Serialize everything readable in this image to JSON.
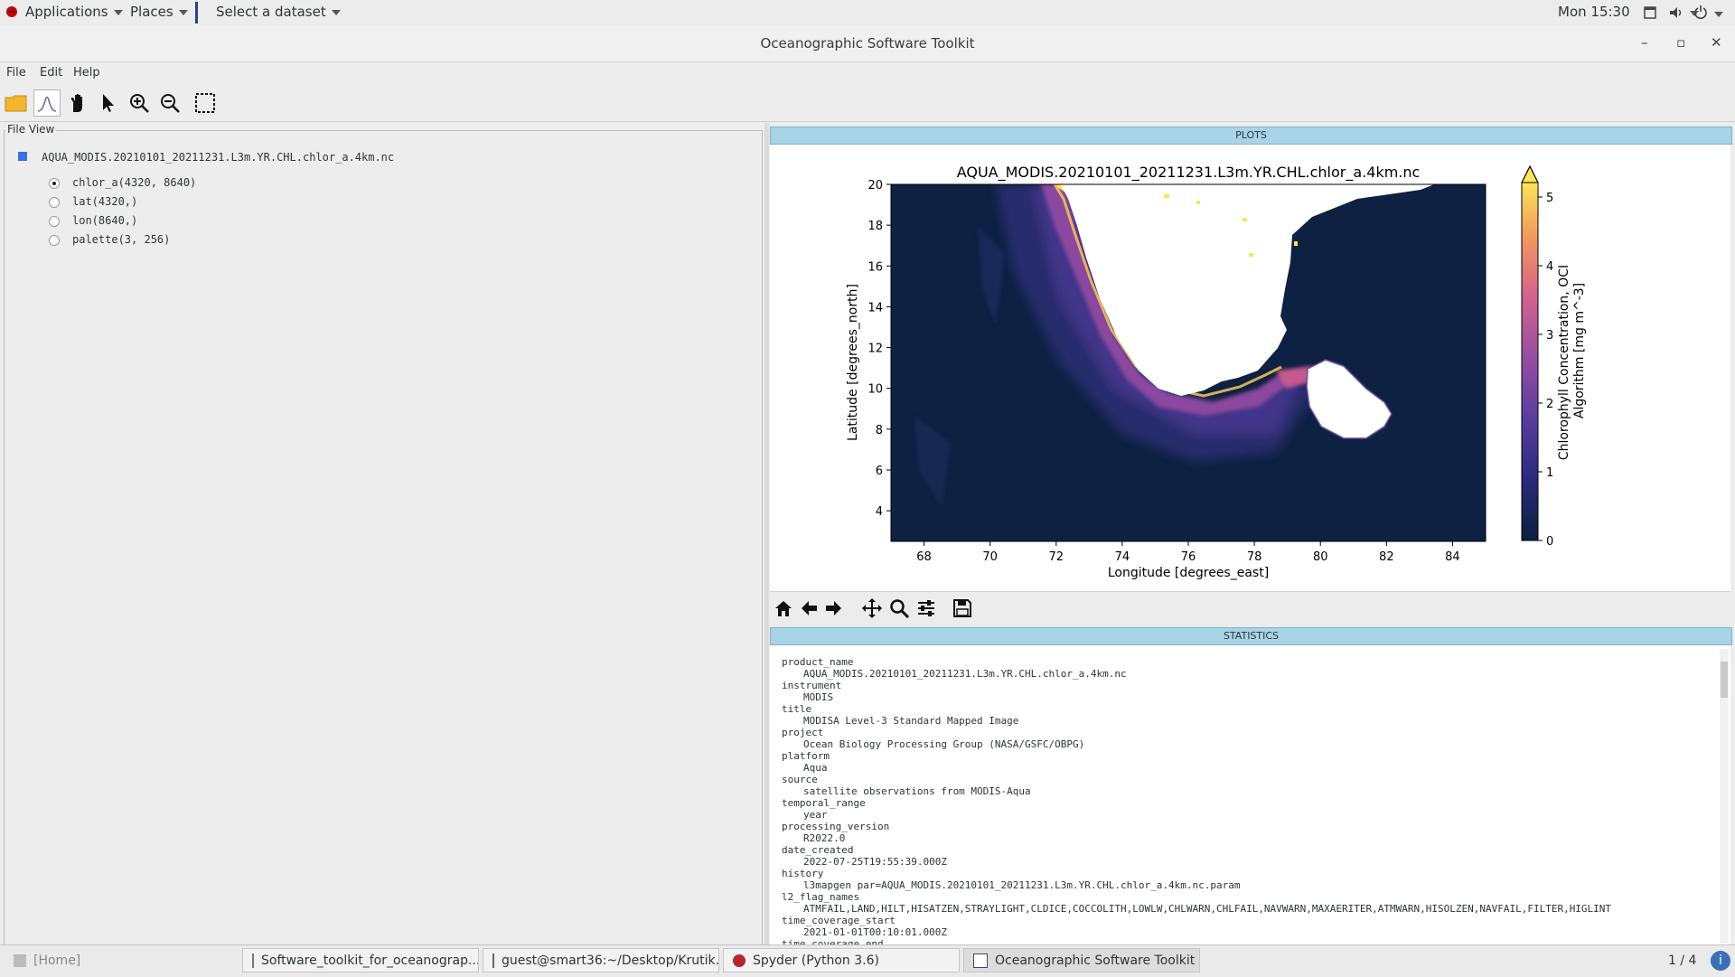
{
  "topbar": {
    "applications": "Applications",
    "places": "Places",
    "dataset": "Select a dataset",
    "clock": "Mon 15:30"
  },
  "window": {
    "title": "Oceanographic Software Toolkit"
  },
  "menu": {
    "file": "File",
    "edit": "Edit",
    "help": "Help"
  },
  "fileview": {
    "label": "File View",
    "filename": "AQUA_MODIS.20210101_20211231.L3m.YR.CHL.chlor_a.4km.nc",
    "variables": [
      {
        "label": "chlor_a(4320, 8640)",
        "selected": true
      },
      {
        "label": "lat(4320,)",
        "selected": false
      },
      {
        "label": "lon(8640,)",
        "selected": false
      },
      {
        "label": "palette(3, 256)",
        "selected": false
      }
    ]
  },
  "plots": {
    "header": "PLOTS"
  },
  "chart_data": {
    "type": "heatmap",
    "title": "AQUA_MODIS.20210101_20211231.L3m.YR.CHL.chlor_a.4km.nc",
    "xlabel": "Longitude [degrees_east]",
    "ylabel": "Latitude [degrees_north]",
    "xlim": [
      67,
      85
    ],
    "ylim": [
      2.5,
      20
    ],
    "xticks": [
      "68",
      "70",
      "72",
      "74",
      "76",
      "78",
      "80",
      "82",
      "84"
    ],
    "yticks": [
      "4",
      "6",
      "8",
      "10",
      "12",
      "14",
      "16",
      "18",
      "20"
    ],
    "colorbar": {
      "label": "Chlorophyll Concentration, OCI Algorithm [mg m^-3]",
      "label_line1": "Chlorophyll Concentration, OCI",
      "label_line2": "Algorithm [mg m^-3]",
      "range": [
        0,
        5
      ],
      "ticks": [
        "0",
        "1",
        "2",
        "3",
        "4",
        "5"
      ],
      "extend": "max",
      "colormap": [
        "#0b1f3d",
        "#2b2a7a",
        "#5b3fa0",
        "#9a4fa0",
        "#d8678a",
        "#f29a5a",
        "#fce45a"
      ]
    }
  },
  "stats": {
    "header": "STATISTICS",
    "entries": [
      {
        "key": "product_name",
        "value": "AQUA_MODIS.20210101_20211231.L3m.YR.CHL.chlor_a.4km.nc"
      },
      {
        "key": "instrument",
        "value": "MODIS"
      },
      {
        "key": "title",
        "value": "MODISA Level-3 Standard Mapped Image"
      },
      {
        "key": "project",
        "value": "Ocean Biology Processing Group (NASA/GSFC/OBPG)"
      },
      {
        "key": "platform",
        "value": "Aqua"
      },
      {
        "key": "source",
        "value": "satellite observations from MODIS-Aqua"
      },
      {
        "key": "temporal_range",
        "value": "year"
      },
      {
        "key": "processing_version",
        "value": "R2022.0"
      },
      {
        "key": "date_created",
        "value": "2022-07-25T19:55:39.000Z"
      },
      {
        "key": "history",
        "value": "l3mapgen par=AQUA_MODIS.20210101_20211231.L3m.YR.CHL.chlor_a.4km.nc.param"
      },
      {
        "key": "l2_flag_names",
        "value": "ATMFAIL,LAND,HILT,HISATZEN,STRAYLIGHT,CLDICE,COCCOLITH,LOWLW,CHLWARN,CHLFAIL,NAVWARN,MAXAERITER,ATMWARN,HISOLZEN,NAVFAIL,FILTER,HIGLINT"
      },
      {
        "key": "time_coverage_start",
        "value": "2021-01-01T00:10:01.000Z"
      },
      {
        "key": "time_coverage_end",
        "value": ""
      }
    ]
  },
  "taskbar": {
    "items": [
      {
        "label": "[Home]"
      },
      {
        "label": "Software_toolkit_for_oceanograp..."
      },
      {
        "label": "guest@smart36:~/Desktop/Krutik..."
      },
      {
        "label": "Spyder (Python 3.6)"
      },
      {
        "label": "Oceanographic Software Toolkit"
      }
    ],
    "workspace": "1 / 4"
  },
  "colors": {
    "accent": "#a9d3e6",
    "file_marker": "#3c6fe0",
    "folder": "#f3b52a"
  }
}
